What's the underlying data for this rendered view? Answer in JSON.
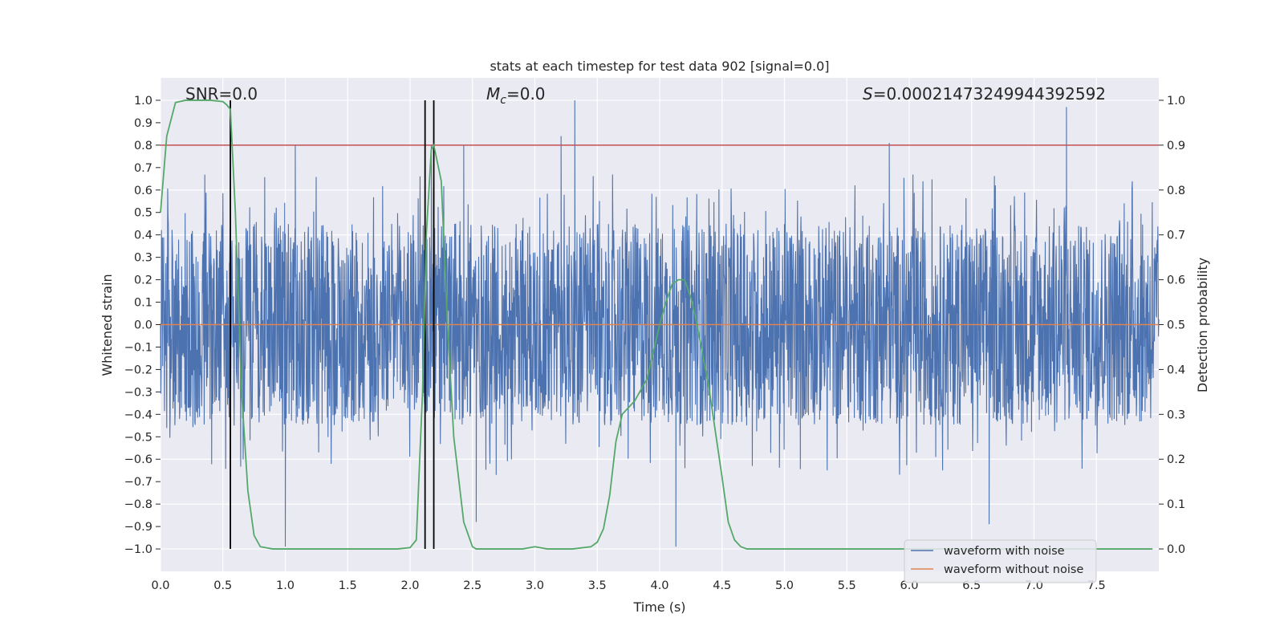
{
  "chart_data": {
    "type": "line",
    "title": "stats at each timestep for test data 902 [signal=0.0]",
    "xlabel": "Time (s)",
    "ylabel_left": "Whitened strain",
    "ylabel_right": "Detection probability",
    "xlim": [
      0.0,
      8.0
    ],
    "ylim_left": [
      -1.1,
      1.1
    ],
    "ylim_right": [
      -0.05,
      1.05
    ],
    "xticks": [
      "0.0",
      "0.5",
      "1.0",
      "1.5",
      "2.0",
      "2.5",
      "3.0",
      "3.5",
      "4.0",
      "4.5",
      "5.0",
      "5.5",
      "6.0",
      "6.5",
      "7.0",
      "7.5"
    ],
    "yticks_left": [
      "1.0",
      "0.9",
      "0.8",
      "0.7",
      "0.6",
      "0.5",
      "0.4",
      "0.3",
      "0.2",
      "0.1",
      "0.0",
      "−0.1",
      "−0.2",
      "−0.3",
      "−0.4",
      "−0.5",
      "−0.6",
      "−0.7",
      "−0.8",
      "−0.9",
      "−1.0"
    ],
    "yticks_right": [
      "1.0",
      "0.9",
      "0.8",
      "0.7",
      "0.6",
      "0.5",
      "0.4",
      "0.3",
      "0.2",
      "0.1",
      "0.0"
    ],
    "grid": true,
    "legend_position": "lower-right",
    "annotations": {
      "snr": "SNR=0.0",
      "mc_symbol": "M",
      "mc_sub": "c",
      "mc_value": "=0.0",
      "s_symbol": "S",
      "s_value": "=0.00021473249944392592"
    },
    "threshold_left": 0.8,
    "vertical_lines_x": [
      0.56,
      2.12,
      2.19
    ],
    "series": [
      {
        "name": "waveform with noise",
        "color": "#4c72b0",
        "noise_envelope": {
          "typical_abs": 0.45,
          "max": 1.0,
          "min": -0.99
        },
        "notable_peaks": [
          {
            "x": 1.08,
            "y": 0.8
          },
          {
            "x": 2.17,
            "y": 0.8
          },
          {
            "x": 2.43,
            "y": 0.8
          },
          {
            "x": 3.21,
            "y": 0.84
          },
          {
            "x": 3.32,
            "y": 1.0
          },
          {
            "x": 5.84,
            "y": 0.81
          },
          {
            "x": 7.26,
            "y": 0.97
          },
          {
            "x": 1.0,
            "y": -0.99
          },
          {
            "x": 2.53,
            "y": -0.88
          },
          {
            "x": 4.13,
            "y": -0.99
          },
          {
            "x": 6.64,
            "y": -0.89
          }
        ]
      },
      {
        "name": "waveform without noise",
        "color": "#dd8452",
        "x": [
          0.0,
          8.0
        ],
        "y": [
          0.0,
          0.0
        ]
      },
      {
        "name": "detection probability",
        "axis": "right",
        "color": "#55a868",
        "x": [
          0.0,
          0.05,
          0.12,
          0.2,
          0.3,
          0.4,
          0.5,
          0.53,
          0.56,
          0.6,
          0.65,
          0.7,
          0.75,
          0.8,
          0.9,
          1.0,
          1.5,
          1.9,
          2.0,
          2.05,
          2.1,
          2.13,
          2.17,
          2.19,
          2.25,
          2.3,
          2.35,
          2.43,
          2.5,
          2.53,
          2.7,
          2.9,
          3.0,
          3.1,
          3.3,
          3.45,
          3.5,
          3.55,
          3.6,
          3.65,
          3.7,
          3.8,
          3.9,
          4.0,
          4.05,
          4.1,
          4.15,
          4.2,
          4.25,
          4.3,
          4.4,
          4.5,
          4.55,
          4.6,
          4.65,
          4.7,
          4.8,
          5.0,
          6.0,
          7.0,
          7.5,
          7.95
        ],
        "y": [
          0.75,
          0.92,
          0.995,
          1.0,
          1.0,
          1.0,
          0.997,
          0.99,
          0.98,
          0.75,
          0.35,
          0.13,
          0.03,
          0.005,
          0.0,
          0.0,
          0.0,
          0.0,
          0.003,
          0.02,
          0.35,
          0.7,
          0.89,
          0.9,
          0.82,
          0.5,
          0.25,
          0.06,
          0.005,
          0.0,
          0.0,
          0.0,
          0.005,
          0.0,
          0.0,
          0.005,
          0.015,
          0.045,
          0.12,
          0.24,
          0.3,
          0.33,
          0.38,
          0.5,
          0.55,
          0.59,
          0.6,
          0.6,
          0.56,
          0.5,
          0.35,
          0.16,
          0.06,
          0.02,
          0.005,
          0.0,
          0.0,
          0.0,
          0.0,
          0.0,
          0.0,
          0.0
        ]
      }
    ]
  }
}
